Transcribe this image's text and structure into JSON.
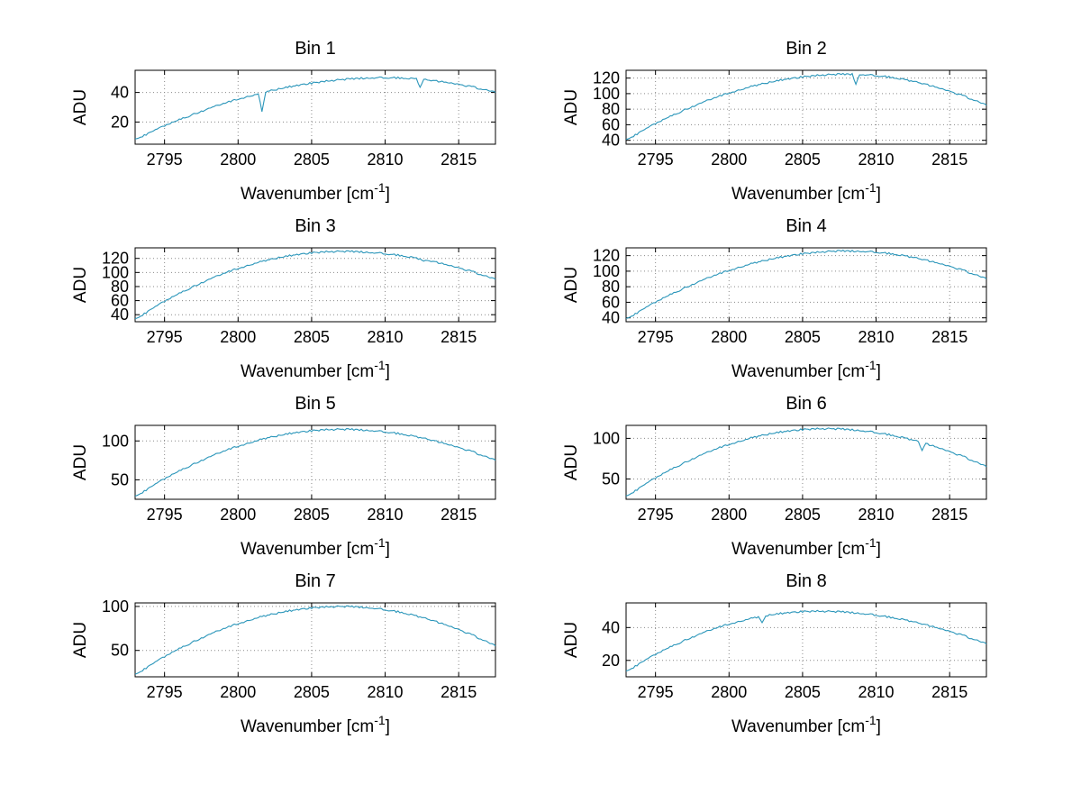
{
  "figure": {
    "background": "#ffffff",
    "line_color": "#2b96ba",
    "grid_color": "#8a8a8a",
    "axis_color": "#000000"
  },
  "chart_data": [
    {
      "type": "line",
      "title": "Bin 1",
      "ylabel": "ADU",
      "xlabel": {
        "base": "Wavenumber [cm",
        "sup": "-1",
        "close": "]"
      },
      "xlim": [
        2793,
        2817.5
      ],
      "ylim": [
        5,
        55
      ],
      "xticks": [
        2795,
        2800,
        2805,
        2810,
        2815
      ],
      "yticks": [
        20,
        40
      ],
      "x": [
        2793,
        2794,
        2795,
        2796,
        2797,
        2798,
        2799,
        2800,
        2801,
        2802,
        2803,
        2804,
        2805,
        2806,
        2807,
        2808,
        2809,
        2810,
        2811,
        2812,
        2813,
        2814,
        2815,
        2816,
        2817,
        2817.5
      ],
      "values": [
        8,
        12.8,
        17.3,
        21.5,
        25.4,
        29.1,
        32.4,
        35.5,
        38.2,
        40.7,
        42.9,
        44.8,
        46.4,
        47.7,
        48.7,
        49.4,
        49.9,
        50,
        49.8,
        49.3,
        48.4,
        47.2,
        45.6,
        43.6,
        41.3,
        40
      ],
      "spikes": [
        {
          "x": 2801.6,
          "y": 27
        },
        {
          "x": 2812.4,
          "y": 43.5
        }
      ]
    },
    {
      "type": "line",
      "title": "Bin 2",
      "ylabel": "ADU",
      "xlabel": {
        "base": "Wavenumber [cm",
        "sup": "-1",
        "close": "]"
      },
      "xlim": [
        2793,
        2817.5
      ],
      "ylim": [
        35,
        130
      ],
      "xticks": [
        2795,
        2800,
        2805,
        2810,
        2815
      ],
      "yticks": [
        40,
        60,
        80,
        100,
        120
      ],
      "x": [
        2793,
        2794,
        2795,
        2796,
        2797,
        2798,
        2799,
        2800,
        2801,
        2802,
        2803,
        2804,
        2805,
        2806,
        2807,
        2808,
        2809,
        2810,
        2811,
        2812,
        2813,
        2814,
        2815,
        2816,
        2817,
        2817.5
      ],
      "values": [
        40,
        51,
        61.2,
        70.6,
        79.3,
        87.2,
        94.4,
        100.8,
        106.5,
        111.4,
        115.6,
        119,
        121.6,
        123.5,
        124.6,
        125,
        124.6,
        123.2,
        121,
        117.9,
        113.9,
        109,
        103.3,
        96.6,
        89.1,
        85
      ],
      "spikes": [
        {
          "x": 2808.6,
          "y": 112
        }
      ]
    },
    {
      "type": "line",
      "title": "Bin 3",
      "ylabel": "ADU",
      "xlabel": {
        "base": "Wavenumber [cm",
        "sup": "-1",
        "close": "]"
      },
      "xlim": [
        2793,
        2817.5
      ],
      "ylim": [
        30,
        135
      ],
      "xticks": [
        2795,
        2800,
        2805,
        2810,
        2815
      ],
      "yticks": [
        40,
        60,
        80,
        100,
        120
      ],
      "x": [
        2793,
        2794,
        2795,
        2796,
        2797,
        2798,
        2799,
        2800,
        2801,
        2802,
        2803,
        2804,
        2805,
        2806,
        2807,
        2808,
        2809,
        2810,
        2811,
        2812,
        2813,
        2814,
        2815,
        2816,
        2817,
        2817.5
      ],
      "values": [
        33,
        46.4,
        58.7,
        70.1,
        80.5,
        89.9,
        98.3,
        105.8,
        112.2,
        117.6,
        122.1,
        125.5,
        128,
        129.5,
        130,
        129.6,
        128.5,
        126.7,
        124.2,
        120.9,
        116.9,
        112.2,
        106.8,
        100.6,
        93.7,
        90
      ],
      "spikes": [
        {
          "x": 2812.6,
          "y": 116
        }
      ]
    },
    {
      "type": "line",
      "title": "Bin 4",
      "ylabel": "ADU",
      "xlabel": {
        "base": "Wavenumber [cm",
        "sup": "-1",
        "close": "]"
      },
      "xlim": [
        2793,
        2817.5
      ],
      "ylim": [
        35,
        130
      ],
      "xticks": [
        2795,
        2800,
        2805,
        2810,
        2815
      ],
      "yticks": [
        40,
        60,
        80,
        100,
        120
      ],
      "x": [
        2793,
        2794,
        2795,
        2796,
        2797,
        2798,
        2799,
        2800,
        2801,
        2802,
        2803,
        2804,
        2805,
        2806,
        2807,
        2808,
        2809,
        2810,
        2811,
        2812,
        2813,
        2814,
        2815,
        2816,
        2817,
        2817.5
      ],
      "values": [
        38,
        49.3,
        59.9,
        69.7,
        78.7,
        86.9,
        94.3,
        101,
        106.8,
        111.9,
        116.2,
        119.7,
        122.5,
        124.4,
        125.6,
        126,
        125.6,
        124.4,
        122.4,
        119.6,
        116,
        111.6,
        106.5,
        100.5,
        93.7,
        90
      ],
      "spikes": []
    },
    {
      "type": "line",
      "title": "Bin 5",
      "ylabel": "ADU",
      "xlabel": {
        "base": "Wavenumber [cm",
        "sup": "-1",
        "close": "]"
      },
      "xlim": [
        2793,
        2817.5
      ],
      "ylim": [
        25,
        120
      ],
      "xticks": [
        2795,
        2800,
        2805,
        2810,
        2815
      ],
      "yticks": [
        50,
        100
      ],
      "x": [
        2793,
        2794,
        2795,
        2796,
        2797,
        2798,
        2799,
        2800,
        2801,
        2802,
        2803,
        2804,
        2805,
        2806,
        2807,
        2808,
        2809,
        2810,
        2811,
        2812,
        2813,
        2814,
        2815,
        2816,
        2817,
        2817.5
      ],
      "values": [
        28,
        40,
        51.1,
        61.3,
        70.6,
        79,
        86.6,
        93.3,
        99,
        103.9,
        107.9,
        111,
        113.2,
        114.6,
        115,
        114.6,
        113.5,
        111.7,
        109.2,
        105.9,
        101.9,
        97.2,
        91.8,
        85.6,
        78.7,
        75
      ],
      "spikes": []
    },
    {
      "type": "line",
      "title": "Bin 6",
      "ylabel": "ADU",
      "xlabel": {
        "base": "Wavenumber [cm",
        "sup": "-1",
        "close": "]"
      },
      "xlim": [
        2793,
        2817.5
      ],
      "ylim": [
        25,
        116
      ],
      "xticks": [
        2795,
        2800,
        2805,
        2810,
        2815
      ],
      "yticks": [
        50,
        100
      ],
      "x": [
        2793,
        2794,
        2795,
        2796,
        2797,
        2798,
        2799,
        2800,
        2801,
        2802,
        2803,
        2804,
        2805,
        2806,
        2807,
        2808,
        2809,
        2810,
        2811,
        2812,
        2813,
        2814,
        2815,
        2816,
        2817,
        2817.5
      ],
      "values": [
        28,
        40,
        51,
        61.2,
        70.4,
        78.7,
        86.1,
        92.5,
        98.1,
        102.7,
        106.4,
        109.1,
        111,
        111.9,
        111.9,
        111.1,
        109.6,
        107.2,
        104.1,
        100.3,
        95.6,
        90.2,
        83.9,
        77,
        69.2,
        65
      ],
      "spikes": [
        {
          "x": 2813.1,
          "y": 85
        }
      ]
    },
    {
      "type": "line",
      "title": "Bin 7",
      "ylabel": "ADU",
      "xlabel": {
        "base": "Wavenumber [cm",
        "sup": "-1",
        "close": "]"
      },
      "xlim": [
        2793,
        2817.5
      ],
      "ylim": [
        20,
        104
      ],
      "xticks": [
        2795,
        2800,
        2805,
        2810,
        2815
      ],
      "yticks": [
        50,
        100
      ],
      "x": [
        2793,
        2794,
        2795,
        2796,
        2797,
        2798,
        2799,
        2800,
        2801,
        2802,
        2803,
        2804,
        2805,
        2806,
        2807,
        2808,
        2809,
        2810,
        2811,
        2812,
        2813,
        2814,
        2815,
        2816,
        2817,
        2817.5
      ],
      "values": [
        22,
        32.8,
        42.7,
        51.9,
        60.2,
        67.8,
        74.5,
        80.5,
        85.7,
        90,
        93.6,
        96.4,
        98.4,
        99.6,
        100,
        99.6,
        98.4,
        96.3,
        93.5,
        89.8,
        85.3,
        80,
        73.9,
        66.9,
        59.2,
        55
      ],
      "spikes": []
    },
    {
      "type": "line",
      "title": "Bin 8",
      "ylabel": "ADU",
      "xlabel": {
        "base": "Wavenumber [cm",
        "sup": "-1",
        "close": "]"
      },
      "xlim": [
        2793,
        2817.5
      ],
      "ylim": [
        10,
        55
      ],
      "xticks": [
        2795,
        2800,
        2805,
        2810,
        2815
      ],
      "yticks": [
        20,
        40
      ],
      "x": [
        2793,
        2794,
        2795,
        2796,
        2797,
        2798,
        2799,
        2800,
        2801,
        2802,
        2803,
        2804,
        2805,
        2806,
        2807,
        2808,
        2809,
        2810,
        2811,
        2812,
        2813,
        2814,
        2815,
        2816,
        2817,
        2817.5
      ],
      "values": [
        13,
        18.5,
        23.5,
        28.1,
        32.3,
        36,
        39.3,
        42.1,
        44.5,
        46.5,
        48,
        49.1,
        49.8,
        50,
        49.8,
        49.4,
        48.6,
        47.6,
        46.2,
        44.6,
        42.6,
        40.3,
        37.8,
        34.9,
        31.7,
        30
      ],
      "spikes": [
        {
          "x": 2802.3,
          "y": 43
        }
      ]
    }
  ]
}
